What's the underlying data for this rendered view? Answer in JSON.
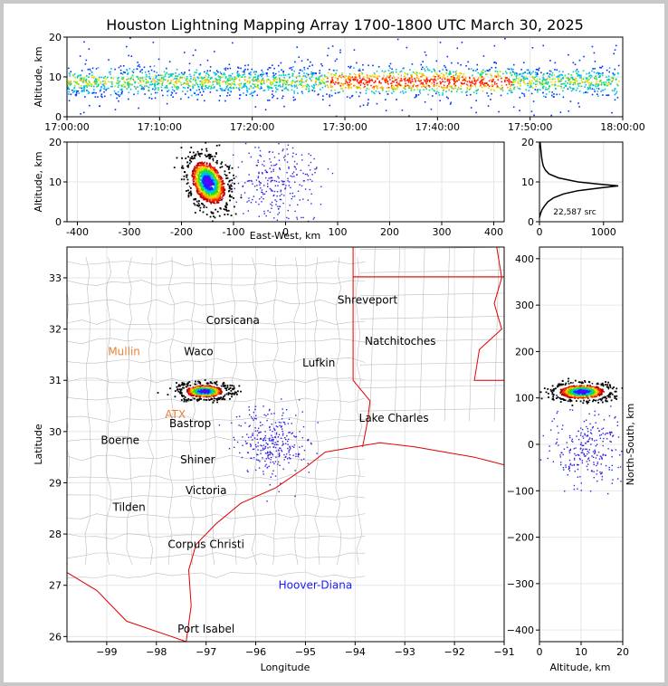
{
  "chart_data": [
    {
      "type": "scatter",
      "panel": "altitude-vs-time",
      "title": "Houston Lightning Mapping Array 1700-1800 UTC March 30, 2025",
      "ylabel": "Altitude, km",
      "xlabel": "",
      "x_ticks": [
        "17:00:00",
        "17:10:00",
        "17:20:00",
        "17:30:00",
        "17:40:00",
        "17:50:00",
        "18:00:00"
      ],
      "y_ticks": [
        0,
        10,
        20
      ],
      "xlim": [
        "17:00:00",
        "18:00:00"
      ],
      "ylim": [
        0,
        20
      ],
      "band": {
        "alt_center_km": 9,
        "alt_spread_km": 2.5,
        "peak_min_minute": 28,
        "peak_max_minute": 48
      },
      "grid": true
    },
    {
      "type": "scatter",
      "panel": "altitude-vs-east-west",
      "xlabel": "East-West, km",
      "ylabel": "Altitude, km",
      "x_ticks": [
        -400,
        -300,
        -200,
        -100,
        0,
        100,
        200,
        300,
        400
      ],
      "y_ticks": [
        0,
        10,
        20
      ],
      "xlim": [
        -420,
        420
      ],
      "ylim": [
        0,
        20
      ],
      "clusters": [
        {
          "x_km": -150,
          "alt_km": 10,
          "density": "high"
        },
        {
          "x_km": -20,
          "alt_km": 10,
          "density": "sparse"
        }
      ],
      "grid": true
    },
    {
      "type": "line",
      "panel": "altitude-histogram",
      "xlabel": "",
      "ylabel": "",
      "x_ticks": [
        0,
        1000
      ],
      "y_ticks": [
        0,
        10,
        20
      ],
      "xlim": [
        0,
        1300
      ],
      "ylim": [
        0,
        20
      ],
      "annotation": "22,587 src",
      "profile": [
        {
          "alt": 1,
          "count": 0
        },
        {
          "alt": 2,
          "count": 15
        },
        {
          "alt": 3,
          "count": 40
        },
        {
          "alt": 4,
          "count": 80
        },
        {
          "alt": 5,
          "count": 130
        },
        {
          "alt": 6,
          "count": 220
        },
        {
          "alt": 7,
          "count": 380
        },
        {
          "alt": 7.8,
          "count": 600
        },
        {
          "alt": 8.5,
          "count": 950
        },
        {
          "alt": 9,
          "count": 1230
        },
        {
          "alt": 9.5,
          "count": 900
        },
        {
          "alt": 10,
          "count": 600
        },
        {
          "alt": 11,
          "count": 300
        },
        {
          "alt": 12,
          "count": 150
        },
        {
          "alt": 13,
          "count": 90
        },
        {
          "alt": 14,
          "count": 60
        },
        {
          "alt": 15,
          "count": 45
        },
        {
          "alt": 16,
          "count": 35
        },
        {
          "alt": 17,
          "count": 28
        },
        {
          "alt": 18,
          "count": 22
        },
        {
          "alt": 19,
          "count": 15
        },
        {
          "alt": 20,
          "count": 10
        }
      ],
      "grid": true
    },
    {
      "type": "scatter",
      "panel": "plan-view-map",
      "xlabel": "Longitude",
      "ylabel": "Latitude",
      "x_ticks": [
        -99,
        -98,
        -97,
        -96,
        -95,
        -94,
        -93,
        -92,
        -91
      ],
      "y_ticks": [
        26,
        27,
        28,
        29,
        30,
        31,
        32,
        33
      ],
      "xlim": [
        -99.8,
        -91
      ],
      "ylim": [
        25.9,
        33.6
      ],
      "clusters": [
        {
          "lon": -97.0,
          "lat": 30.8,
          "density": "high"
        },
        {
          "lon": -95.7,
          "lat": 29.8,
          "density": "sparse"
        }
      ],
      "cities": [
        {
          "name": "Shreveport",
          "lon": -93.75,
          "lat": 32.57,
          "color": "#000000"
        },
        {
          "name": "Corsicana",
          "lon": -96.46,
          "lat": 32.17,
          "color": "#000000"
        },
        {
          "name": "Mullin",
          "lon": -98.65,
          "lat": 31.56,
          "color": "#e8803a"
        },
        {
          "name": "Waco",
          "lon": -97.15,
          "lat": 31.56,
          "color": "#000000"
        },
        {
          "name": "Natchitoches",
          "lon": -93.09,
          "lat": 31.76,
          "color": "#000000"
        },
        {
          "name": "Lufkin",
          "lon": -94.73,
          "lat": 31.34,
          "color": "#000000"
        },
        {
          "name": "Lake Charles",
          "lon": -93.22,
          "lat": 30.26,
          "color": "#000000"
        },
        {
          "name": "ATX",
          "lon": -97.62,
          "lat": 30.33,
          "color": "#e8803a"
        },
        {
          "name": "Bastrop",
          "lon": -97.32,
          "lat": 30.16,
          "color": "#000000"
        },
        {
          "name": "Boerne",
          "lon": -98.73,
          "lat": 29.83,
          "color": "#000000"
        },
        {
          "name": "Shiner",
          "lon": -97.17,
          "lat": 29.45,
          "color": "#000000"
        },
        {
          "name": "Victoria",
          "lon": -97.0,
          "lat": 28.85,
          "color": "#000000"
        },
        {
          "name": "Tilden",
          "lon": -98.55,
          "lat": 28.52,
          "color": "#000000"
        },
        {
          "name": "Corpus Christi",
          "lon": -97.0,
          "lat": 27.8,
          "color": "#000000"
        },
        {
          "name": "Hoover-Diana",
          "lon": -94.8,
          "lat": 27.0,
          "color": "#1a1aff"
        },
        {
          "name": "Port Isabel",
          "lon": -97.0,
          "lat": 26.15,
          "color": "#000000"
        }
      ],
      "grid": true
    },
    {
      "type": "scatter",
      "panel": "north-south-vs-altitude",
      "xlabel": "Altitude, km",
      "ylabel": "North-South, km",
      "x_ticks": [
        0,
        10,
        20
      ],
      "y_ticks": [
        -400,
        -300,
        -200,
        -100,
        0,
        100,
        200,
        300,
        400
      ],
      "xlim": [
        0,
        20
      ],
      "ylim": [
        -425,
        425
      ],
      "clusters": [
        {
          "y_km": 115,
          "alt_km": 10,
          "density": "high"
        },
        {
          "y_km": -10,
          "alt_km": 12,
          "density": "sparse"
        }
      ],
      "grid": true
    }
  ],
  "colors": {
    "sparse": "#3b1fe0",
    "palette": [
      "#5a00ff",
      "#0030ff",
      "#00b4ff",
      "#00d890",
      "#3cdc00",
      "#d8e000",
      "#ffa800",
      "#ff2000",
      "#b00000",
      "#ffffff",
      "#000000"
    ],
    "state_border": "#e00000",
    "county_line": "#bdbdbd"
  }
}
